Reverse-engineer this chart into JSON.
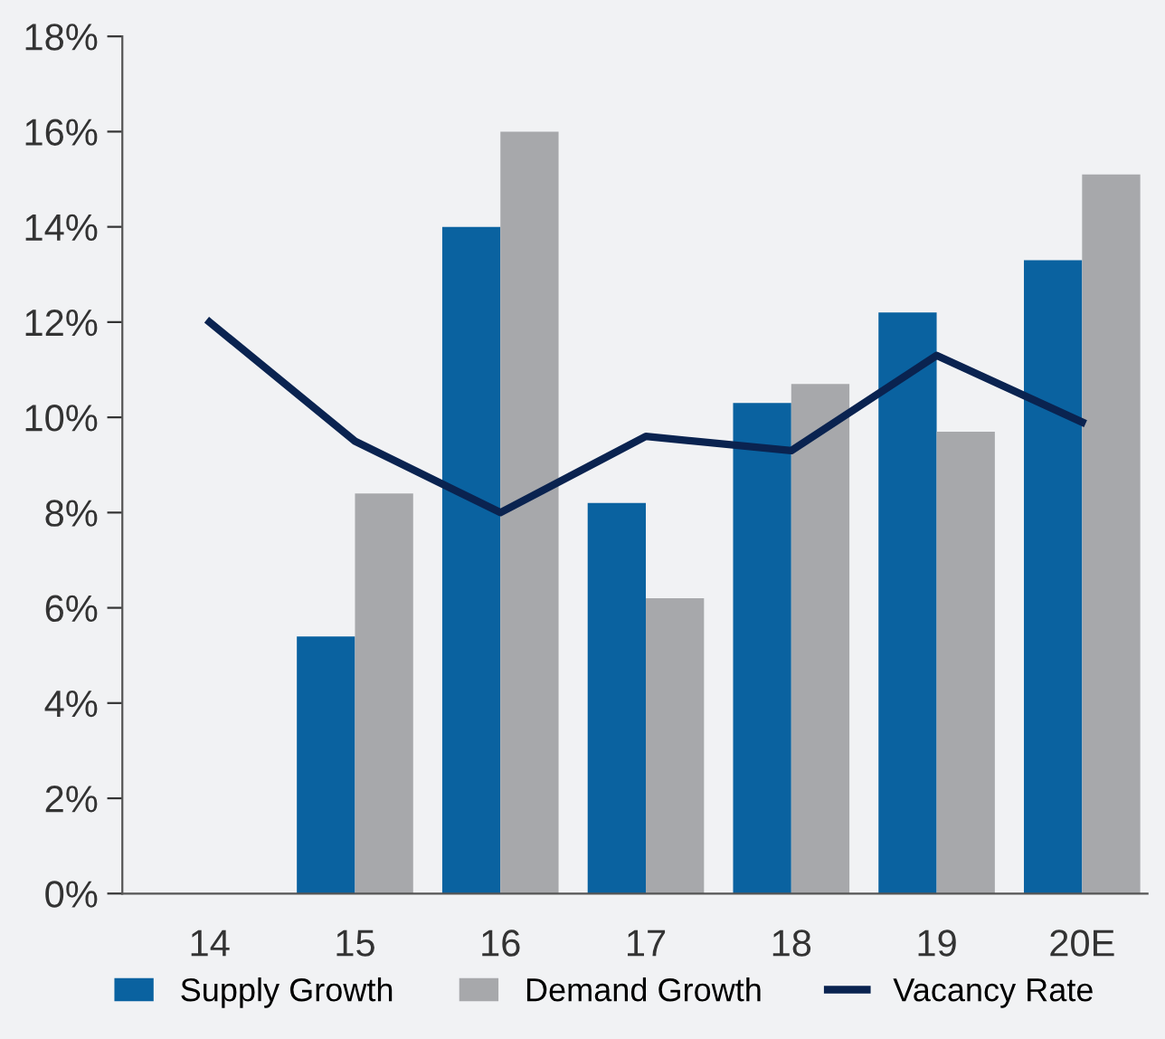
{
  "chart_data": {
    "type": "bar",
    "categories": [
      "14",
      "15",
      "16",
      "17",
      "18",
      "19",
      "20E"
    ],
    "series": [
      {
        "name": "Supply Growth",
        "color": "#0a62a0",
        "values": [
          null,
          5.4,
          14.0,
          8.2,
          10.3,
          12.2,
          13.3
        ]
      },
      {
        "name": "Demand Growth",
        "color": "#a7a8ab",
        "values": [
          null,
          8.4,
          16.0,
          6.2,
          10.7,
          9.7,
          15.1
        ]
      },
      {
        "name": "Vacancy Rate",
        "type": "line",
        "color": "#0a2350",
        "values": [
          12.0,
          9.5,
          8.0,
          9.6,
          9.3,
          11.3,
          9.9
        ]
      }
    ],
    "ylim": [
      0,
      18
    ],
    "yticks": [
      {
        "value": 0,
        "label": "0%"
      },
      {
        "value": 2,
        "label": "2%"
      },
      {
        "value": 4,
        "label": "4%"
      },
      {
        "value": 6,
        "label": "6%"
      },
      {
        "value": 8,
        "label": "8%"
      },
      {
        "value": 10,
        "label": "10%"
      },
      {
        "value": 12,
        "label": "12%"
      },
      {
        "value": 14,
        "label": "14%"
      },
      {
        "value": 16,
        "label": "16%"
      },
      {
        "value": 18,
        "label": "18%"
      }
    ],
    "grid": false,
    "legend": "bottom",
    "marker": "none",
    "line_style": "solid"
  }
}
